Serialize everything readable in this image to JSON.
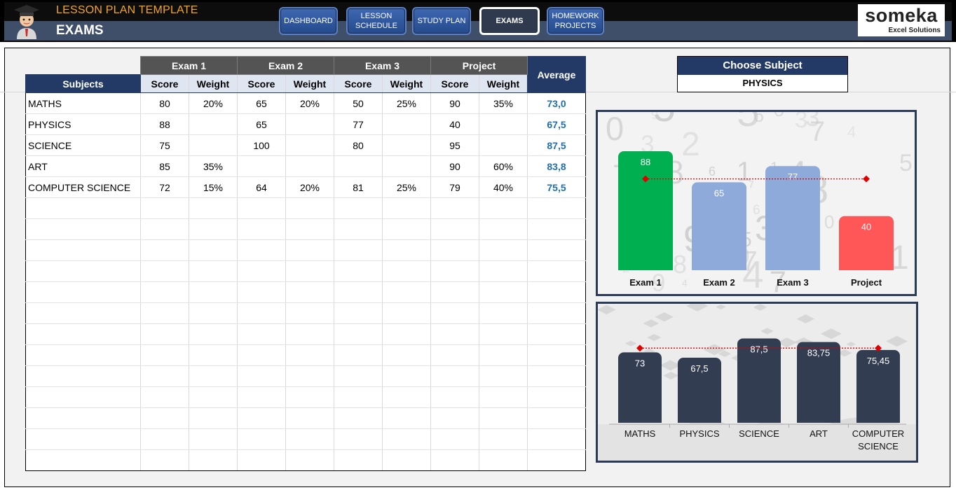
{
  "header": {
    "app_title": "LESSON PLAN TEMPLATE",
    "page_title": "EXAMS",
    "nav": [
      {
        "label_lines": [
          "DASHBOARD"
        ],
        "active": false
      },
      {
        "label_lines": [
          "LESSON",
          "SCHEDULE"
        ],
        "active": false
      },
      {
        "label_lines": [
          "STUDY PLAN"
        ],
        "active": false
      },
      {
        "label_lines": [
          "EXAMS"
        ],
        "active": true
      },
      {
        "label_lines": [
          "HOMEWORK",
          "PROJECTS"
        ],
        "active": false
      }
    ],
    "logo": {
      "name": "someka",
      "tagline": "Excel Solutions"
    }
  },
  "table": {
    "exam_groups": [
      "Exam 1",
      "Exam 2",
      "Exam 3",
      "Project"
    ],
    "subjects_header": "Subjects",
    "score_header": "Score",
    "weight_header": "Weight",
    "average_header": "Average",
    "rows": [
      {
        "subject": "MATHS",
        "cells": [
          "80",
          "20%",
          "65",
          "20%",
          "50",
          "25%",
          "90",
          "35%"
        ],
        "average": "73,0"
      },
      {
        "subject": "PHYSICS",
        "cells": [
          "88",
          "",
          "65",
          "",
          "77",
          "",
          "40",
          ""
        ],
        "average": "67,5"
      },
      {
        "subject": "SCIENCE",
        "cells": [
          "75",
          "",
          "100",
          "",
          "80",
          "",
          "95",
          ""
        ],
        "average": "87,5"
      },
      {
        "subject": "ART",
        "cells": [
          "85",
          "35%",
          "",
          "",
          "",
          "",
          "90",
          "60%"
        ],
        "average": "83,8"
      },
      {
        "subject": "COMPUTER SCIENCE",
        "cells": [
          "72",
          "15%",
          "64",
          "20%",
          "81",
          "25%",
          "79",
          "40%"
        ],
        "average": "75,5"
      }
    ],
    "empty_rows": 13
  },
  "choose_subject": {
    "label": "Choose Subject",
    "value": "PHYSICS"
  },
  "chart_data": [
    {
      "type": "bar",
      "categories": [
        "Exam 1",
        "Exam 2",
        "Exam 3",
        "Project"
      ],
      "values": [
        88,
        65,
        77,
        40
      ],
      "data_labels": [
        "88",
        "65",
        "77",
        "40"
      ],
      "bar_colors": [
        "#00b050",
        "#8eaadb",
        "#8eaadb",
        "#ff5757"
      ],
      "average_line": 67.5,
      "average_line_color": "#e00000",
      "ylim": [
        0,
        100
      ]
    },
    {
      "type": "bar",
      "categories": [
        [
          "MATHS"
        ],
        [
          "PHYSICS"
        ],
        [
          "SCIENCE"
        ],
        [
          "ART"
        ],
        [
          "COMPUTER",
          "SCIENCE"
        ]
      ],
      "values": [
        73,
        67.5,
        87.5,
        83.75,
        75.45
      ],
      "data_labels": [
        "73",
        "67,5",
        "87,5",
        "83,75",
        "75,45"
      ],
      "bar_color": "#323d52",
      "average_line": 77.44,
      "average_line_color": "#e00000",
      "ylim": [
        0,
        100
      ]
    }
  ]
}
